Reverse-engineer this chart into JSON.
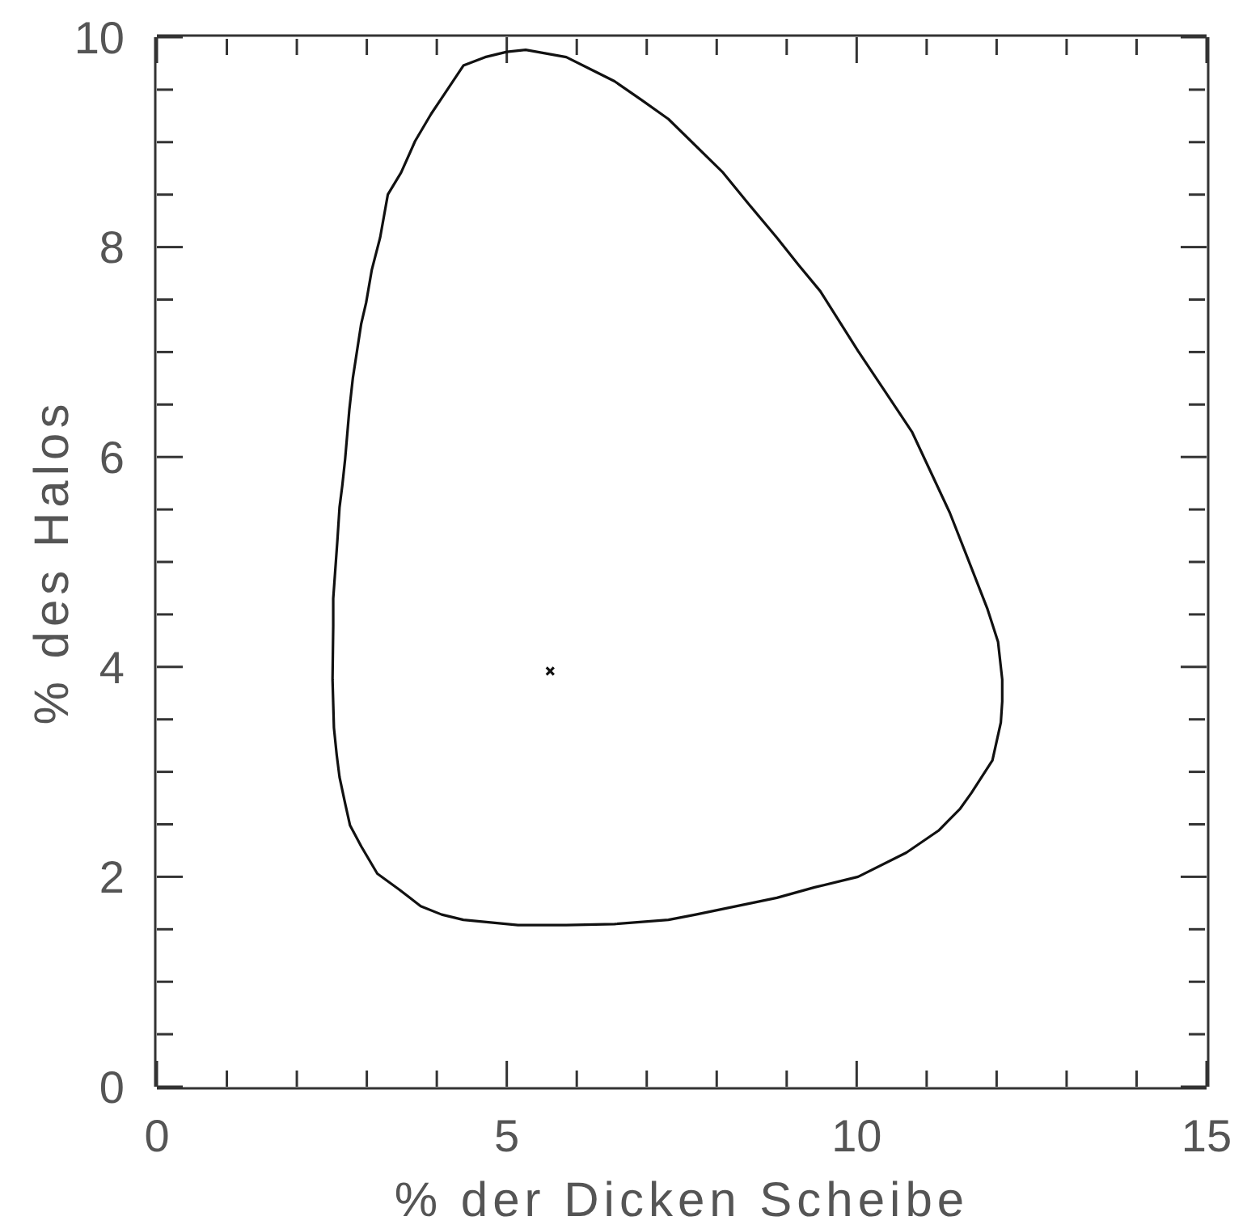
{
  "chart_data": {
    "type": "scatter",
    "xlabel": "% der Dicken Scheibe",
    "ylabel": "% des Halos",
    "xlim": [
      0,
      15
    ],
    "ylim": [
      0,
      10
    ],
    "xticks": [
      0,
      {
        "value": 1,
        "label": null
      },
      {
        "value": 2,
        "label": null
      },
      {
        "value": 3,
        "label": null
      },
      {
        "value": 4,
        "label": null
      },
      5,
      {
        "value": 6,
        "label": null
      },
      {
        "value": 7,
        "label": null
      },
      {
        "value": 8,
        "label": null
      },
      {
        "value": 9,
        "label": null
      },
      10,
      {
        "value": 11,
        "label": null
      },
      {
        "value": 12,
        "label": null
      },
      {
        "value": 13,
        "label": null
      },
      {
        "value": 14,
        "label": null
      },
      15
    ],
    "yticks": [
      0,
      {
        "value": 0.5,
        "label": null
      },
      {
        "value": 1,
        "label": null
      },
      {
        "value": 1.5,
        "label": null
      },
      2,
      {
        "value": 2.5,
        "label": null
      },
      {
        "value": 3,
        "label": null
      },
      {
        "value": 3.5,
        "label": null
      },
      4,
      {
        "value": 4.5,
        "label": null
      },
      {
        "value": 5,
        "label": null
      },
      {
        "value": 5.5,
        "label": null
      },
      6,
      {
        "value": 6.5,
        "label": null
      },
      {
        "value": 7,
        "label": null
      },
      {
        "value": 7.5,
        "label": null
      },
      8,
      {
        "value": 8.5,
        "label": null
      },
      {
        "value": 9,
        "label": null
      },
      {
        "value": 9.5,
        "label": null
      },
      10
    ],
    "series": [
      {
        "color": "#111111",
        "marker": "cross",
        "x": [
          5.62
        ],
        "values": [
          3.96
        ]
      }
    ]
  }
}
